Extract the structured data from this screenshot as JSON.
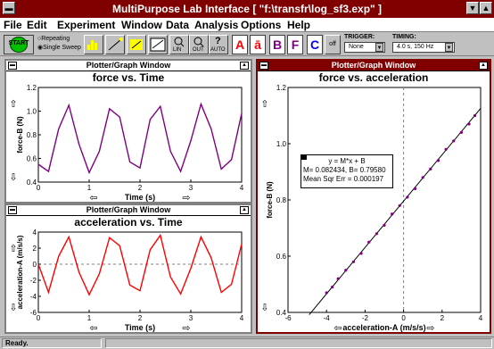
{
  "app": {
    "title": "MultiPurpose Lab Interface [ \"f:\\transfr\\log_sf3.exp\" ]"
  },
  "menu": [
    "File",
    "Edit",
    "Experiment",
    "Window",
    "Data",
    "Analysis",
    "Options",
    "Help"
  ],
  "toolbar": {
    "start": "START",
    "repeating": "Repeating",
    "single_sweep": "Single Sweep",
    "trigger_label": "TRIGGER:",
    "trigger_value": "None",
    "timing_label": "TIMING:",
    "timing_value": "4.0 s, 150 Hz",
    "btn_lin": "LIN",
    "btn_out": "OUT",
    "btn_auto": "AUTO",
    "btn_c_off": "off",
    "big_a": "A",
    "big_a2": "ā",
    "big_b": "B",
    "big_f": "F",
    "big_c": "C"
  },
  "windows": {
    "w1": {
      "title": "Plotter/Graph Window",
      "plot_title": "force vs. Time",
      "ylabel": "force-B (N)",
      "xlabel": "Time (s)"
    },
    "w2": {
      "title": "Plotter/Graph Window",
      "plot_title": "acceleration vs. Time",
      "ylabel": "acceleration-A (m/s/s)",
      "xlabel": "Time (s)"
    },
    "w3": {
      "title": "Plotter/Graph Window",
      "plot_title": "force vs. acceleration",
      "ylabel": "force-B (N)",
      "xlabel": "acceleration-A (m/s/s)",
      "fit_eq": "y = M*x + B",
      "fit_params": "M= 0.082434,  B= 0.79580",
      "fit_err": "Mean Sqr Err = 0.000197"
    }
  },
  "chart_data": [
    {
      "type": "line",
      "title": "force vs. Time",
      "xlabel": "Time (s)",
      "ylabel": "force-B (N)",
      "xlim": [
        0,
        4
      ],
      "ylim": [
        0.4,
        1.2
      ],
      "xticks": [
        "0",
        "1",
        "2",
        "3",
        "4"
      ],
      "yticks": [
        "0.4",
        "0.6",
        "0.8",
        "1.0",
        "1.2"
      ],
      "color": "#800080",
      "series": [
        {
          "x": [
            0,
            0.2,
            0.4,
            0.6,
            0.8,
            1.0,
            1.2,
            1.4,
            1.6,
            1.8,
            2.0,
            2.2,
            2.4,
            2.6,
            2.8,
            3.0,
            3.2,
            3.4,
            3.6,
            3.8,
            4.0
          ],
          "y": [
            0.55,
            0.49,
            0.85,
            1.05,
            0.72,
            0.48,
            0.66,
            1.02,
            0.95,
            0.57,
            0.52,
            0.93,
            1.04,
            0.66,
            0.49,
            0.75,
            1.06,
            0.85,
            0.51,
            0.59,
            0.98
          ]
        }
      ]
    },
    {
      "type": "line",
      "title": "acceleration vs. Time",
      "xlabel": "Time (s)",
      "ylabel": "acceleration-A (m/s/s)",
      "xlim": [
        0,
        4
      ],
      "ylim": [
        -6,
        4
      ],
      "xticks": [
        "0",
        "1",
        "2",
        "3",
        "4"
      ],
      "yticks": [
        "-6",
        "-4",
        "-2",
        "0",
        "2",
        "4"
      ],
      "color": "#ff0000",
      "series": [
        {
          "x": [
            0,
            0.2,
            0.4,
            0.6,
            0.8,
            1.0,
            1.2,
            1.4,
            1.6,
            1.8,
            2.0,
            2.2,
            2.4,
            2.6,
            2.8,
            3.0,
            3.2,
            3.4,
            3.6,
            3.8,
            4.0
          ],
          "y": [
            0,
            -3.5,
            1.0,
            3.4,
            -1.0,
            -3.8,
            -1.2,
            3.3,
            2.3,
            -2.6,
            -3.3,
            1.8,
            3.6,
            -1.6,
            -3.7,
            -0.5,
            3.4,
            0.8,
            -3.5,
            -2.5,
            2.5
          ]
        }
      ]
    },
    {
      "type": "scatter",
      "title": "force vs. acceleration",
      "xlabel": "acceleration-A (m/s/s)",
      "ylabel": "force-B (N)",
      "xlim": [
        -6,
        4
      ],
      "ylim": [
        0.4,
        1.2
      ],
      "xticks": [
        "-6",
        "-4",
        "-2",
        "0",
        "2",
        "4"
      ],
      "yticks": [
        "0.4",
        "0.6",
        "0.8",
        "1.0",
        "1.2"
      ],
      "color": "#800080",
      "fit": {
        "slope": 0.082434,
        "intercept": 0.7958
      },
      "series": [
        {
          "x": [
            -4.0,
            -3.7,
            -3.4,
            -3.0,
            -2.6,
            -2.2,
            -1.8,
            -1.4,
            -1.0,
            -0.6,
            -0.2,
            0.2,
            0.6,
            1.0,
            1.4,
            1.8,
            2.2,
            2.6,
            3.0,
            3.4,
            3.7
          ],
          "y": [
            0.47,
            0.49,
            0.52,
            0.55,
            0.58,
            0.61,
            0.65,
            0.68,
            0.71,
            0.75,
            0.78,
            0.81,
            0.84,
            0.88,
            0.91,
            0.94,
            0.98,
            1.01,
            1.04,
            1.07,
            1.1
          ]
        }
      ]
    }
  ],
  "status": {
    "text": "Ready."
  }
}
